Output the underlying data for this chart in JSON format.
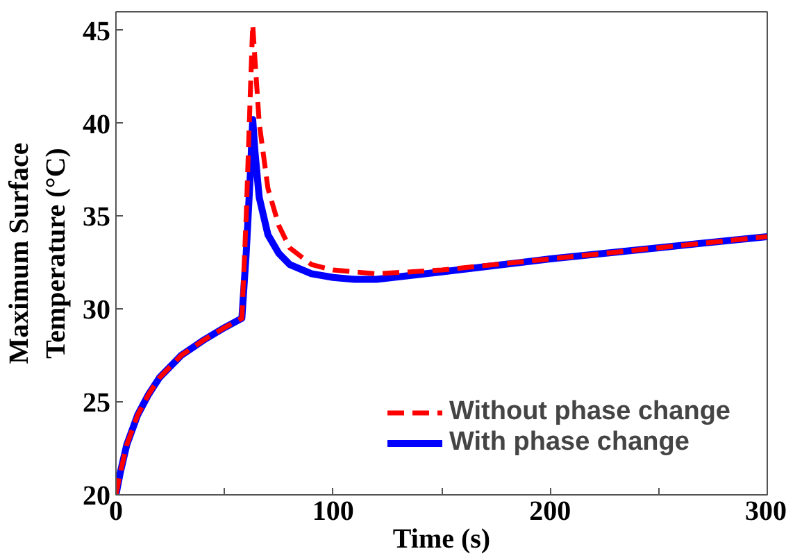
{
  "chart_data": {
    "type": "line",
    "xlabel": "Time (s)",
    "ylabel": "Maximum Surface\nTemperature (°C)",
    "xlim": [
      0,
      300
    ],
    "ylim": [
      20,
      46
    ],
    "xticks": [
      0,
      {
        "value": 50,
        "label": null
      },
      100,
      {
        "value": 150,
        "label": null
      },
      200,
      {
        "value": 250,
        "label": null
      },
      300
    ],
    "yticks": [
      20,
      25,
      30,
      35,
      40,
      45
    ],
    "grid": false,
    "legend": "bottom right",
    "marker": "none",
    "series": [
      {
        "name": "Without phase change",
        "color": "#ff0000",
        "line_style": "dashed",
        "x": [
          0,
          2,
          5,
          10,
          15,
          20,
          30,
          40,
          50,
          58,
          60,
          62,
          63,
          64,
          66,
          70,
          75,
          80,
          90,
          100,
          110,
          120,
          150,
          200,
          250,
          300
        ],
        "values": [
          20,
          21.2,
          22.7,
          24.3,
          25.4,
          26.3,
          27.5,
          28.3,
          29.0,
          29.5,
          35,
          42,
          45.3,
          43.5,
          40,
          36.5,
          34.5,
          33.3,
          32.4,
          32.1,
          32.0,
          31.9,
          32.1,
          32.7,
          33.3,
          33.9
        ]
      },
      {
        "name": "With phase change",
        "color": "#0000ff",
        "line_style": "solid",
        "x": [
          0,
          2,
          5,
          10,
          15,
          20,
          30,
          40,
          50,
          58,
          60,
          62,
          63,
          64,
          66,
          70,
          75,
          80,
          90,
          100,
          110,
          120,
          150,
          200,
          250,
          300
        ],
        "values": [
          20,
          21.2,
          22.7,
          24.3,
          25.4,
          26.3,
          27.5,
          28.3,
          29.0,
          29.5,
          33,
          37.5,
          40.2,
          38.5,
          36,
          34,
          33,
          32.4,
          31.9,
          31.7,
          31.6,
          31.6,
          32.0,
          32.7,
          33.3,
          33.9
        ]
      }
    ]
  }
}
